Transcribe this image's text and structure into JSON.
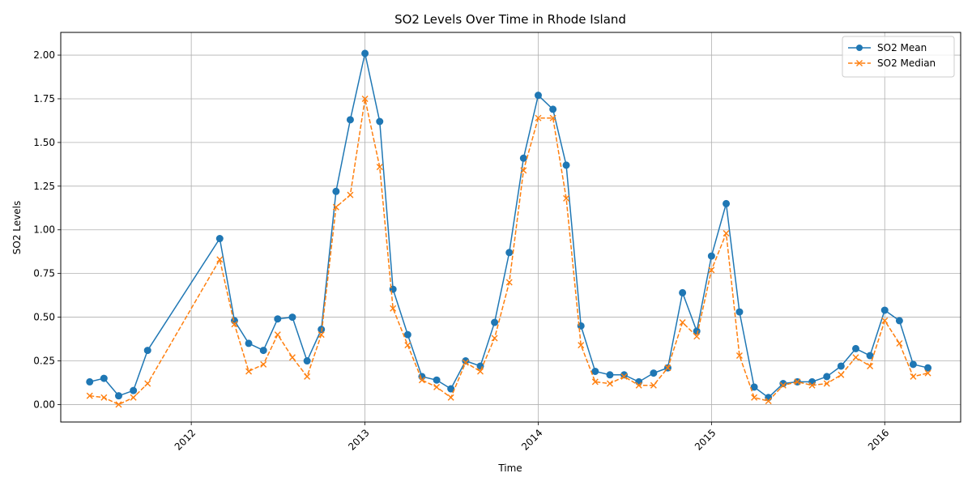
{
  "chart_data": {
    "type": "line",
    "title": "SO2 Levels Over Time in Rhode Island",
    "xlabel": "Time",
    "ylabel": "SO2 Levels",
    "ylim": [
      -0.1,
      2.13
    ],
    "xlim": [
      "2011-04-01",
      "2016-06-09"
    ],
    "grid": true,
    "legend_position": "top-right",
    "x_ticks": [
      "2012",
      "2013",
      "2014",
      "2015",
      "2016"
    ],
    "y_ticks": [
      "0.00",
      "0.25",
      "0.50",
      "0.75",
      "1.00",
      "1.25",
      "1.50",
      "1.75",
      "2.00"
    ],
    "x": [
      "2011-06-01",
      "2011-07-01",
      "2011-08-01",
      "2011-09-01",
      "2011-10-01",
      "2012-03-01",
      "2012-04-01",
      "2012-05-01",
      "2012-06-01",
      "2012-07-01",
      "2012-08-01",
      "2012-09-01",
      "2012-10-01",
      "2012-11-01",
      "2012-12-01",
      "2013-01-01",
      "2013-02-01",
      "2013-03-01",
      "2013-04-01",
      "2013-05-01",
      "2013-06-01",
      "2013-07-01",
      "2013-08-01",
      "2013-09-01",
      "2013-10-01",
      "2013-11-01",
      "2013-12-01",
      "2014-01-01",
      "2014-02-01",
      "2014-03-01",
      "2014-04-01",
      "2014-05-01",
      "2014-06-01",
      "2014-07-01",
      "2014-08-01",
      "2014-09-01",
      "2014-10-01",
      "2014-11-01",
      "2014-12-01",
      "2015-01-01",
      "2015-02-01",
      "2015-03-01",
      "2015-04-01",
      "2015-05-01",
      "2015-06-01",
      "2015-07-01",
      "2015-08-01",
      "2015-09-01",
      "2015-10-01",
      "2015-11-01",
      "2015-12-01",
      "2016-01-01",
      "2016-02-01",
      "2016-03-01",
      "2016-04-01"
    ],
    "series": [
      {
        "name": "SO2 Mean",
        "color": "#1f77b4",
        "marker": "circle",
        "line_style": "solid",
        "values": [
          0.13,
          0.15,
          0.05,
          0.08,
          0.31,
          0.95,
          0.48,
          0.35,
          0.31,
          0.49,
          0.5,
          0.25,
          0.43,
          1.22,
          1.63,
          2.01,
          1.62,
          0.66,
          0.4,
          0.16,
          0.14,
          0.09,
          0.25,
          0.22,
          0.47,
          0.87,
          1.41,
          1.77,
          1.69,
          1.37,
          0.45,
          0.19,
          0.17,
          0.17,
          0.13,
          0.18,
          0.21,
          0.64,
          0.42,
          0.85,
          1.15,
          0.53,
          0.1,
          0.04,
          0.12,
          0.13,
          0.13,
          0.16,
          0.22,
          0.32,
          0.28,
          0.54,
          0.48,
          0.23,
          0.21
        ]
      },
      {
        "name": "SO2 Median",
        "color": "#ff7f0e",
        "marker": "x",
        "line_style": "dashed",
        "values": [
          0.05,
          0.04,
          0.0,
          0.04,
          0.12,
          0.83,
          0.46,
          0.19,
          0.23,
          0.4,
          0.27,
          0.16,
          0.4,
          1.13,
          1.2,
          1.75,
          1.36,
          0.55,
          0.34,
          0.14,
          0.1,
          0.04,
          0.24,
          0.19,
          0.38,
          0.7,
          1.34,
          1.64,
          1.64,
          1.18,
          0.34,
          0.13,
          0.12,
          0.16,
          0.11,
          0.11,
          0.21,
          0.47,
          0.39,
          0.77,
          0.98,
          0.28,
          0.04,
          0.02,
          0.11,
          0.13,
          0.11,
          0.12,
          0.17,
          0.27,
          0.22,
          0.48,
          0.35,
          0.16,
          0.18
        ]
      }
    ]
  }
}
